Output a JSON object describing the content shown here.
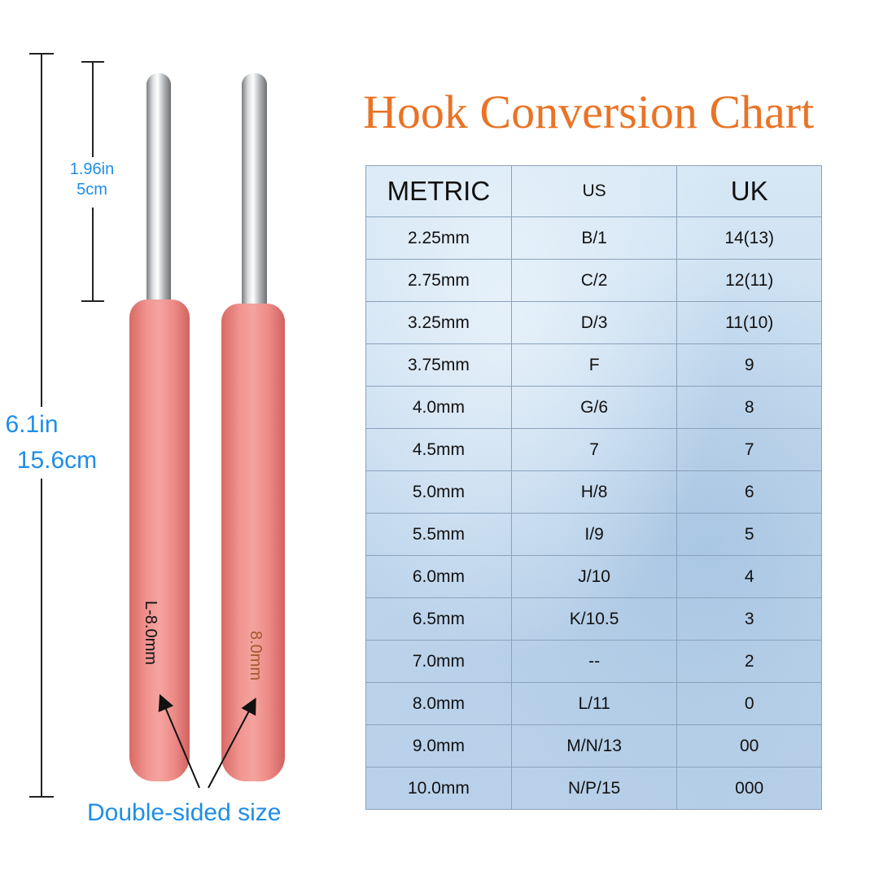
{
  "title": "Hook Conversion Chart",
  "dimensions": {
    "total_length_in": "6.1in",
    "total_length_cm": "15.6cm",
    "head_length_in": "1.96in",
    "head_length_cm": "5cm"
  },
  "hooks": {
    "left_label": "L-8.0mm",
    "right_label": "8.0mm",
    "caption": "Double-sided size"
  },
  "colors": {
    "title": "#ea7326",
    "annotation": "#1f8ee6",
    "handle": "#f19591"
  },
  "table": {
    "headers": [
      "METRIC",
      "US",
      "UK"
    ],
    "rows": [
      [
        "2.25mm",
        "B/1",
        "14(13)"
      ],
      [
        "2.75mm",
        "C/2",
        "12(11)"
      ],
      [
        "3.25mm",
        "D/3",
        "11(10)"
      ],
      [
        "3.75mm",
        "F",
        "9"
      ],
      [
        "4.0mm",
        "G/6",
        "8"
      ],
      [
        "4.5mm",
        "7",
        "7"
      ],
      [
        "5.0mm",
        "H/8",
        "6"
      ],
      [
        "5.5mm",
        "I/9",
        "5"
      ],
      [
        "6.0mm",
        "J/10",
        "4"
      ],
      [
        "6.5mm",
        "K/10.5",
        "3"
      ],
      [
        "7.0mm",
        "--",
        "2"
      ],
      [
        "8.0mm",
        "L/11",
        "0"
      ],
      [
        "9.0mm",
        "M/N/13",
        "00"
      ],
      [
        "10.0mm",
        "N/P/15",
        "000"
      ]
    ]
  }
}
